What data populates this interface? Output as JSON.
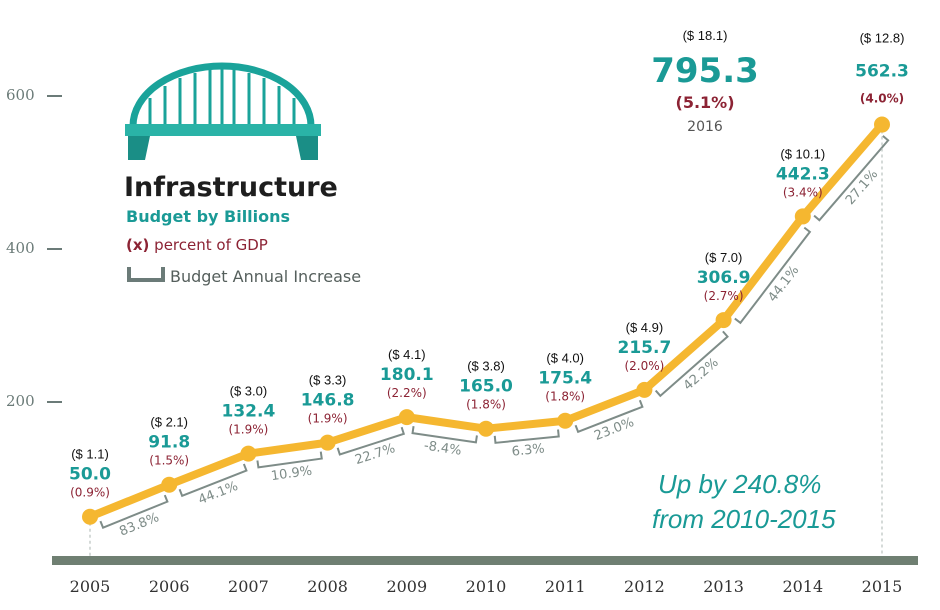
{
  "chart_data": {
    "type": "line",
    "title": "Infrastructure",
    "subtitle": "Budget by Billions",
    "x": [
      "2005",
      "2006",
      "2007",
      "2008",
      "2009",
      "2010",
      "2011",
      "2012",
      "2013",
      "2014",
      "2015"
    ],
    "values": [
      50.0,
      91.8,
      132.4,
      146.8,
      180.1,
      165.0,
      175.4,
      215.7,
      306.9,
      442.3,
      562.3
    ],
    "value_labels": [
      "50.0",
      "91.8",
      "132.4",
      "146.8",
      "180.1",
      "165.0",
      "175.4",
      "215.7",
      "306.9",
      "442.3",
      "562.3"
    ],
    "billion_labels": [
      "($ 1.1)",
      "($ 2.1)",
      "($ 3.0)",
      "($ 3.3)",
      "($ 4.1)",
      "($ 3.8)",
      "($ 4.0)",
      "($ 4.9)",
      "($ 7.0)",
      "($ 10.1)",
      "($ 12.8)"
    ],
    "gdp_labels": [
      "(0.9%)",
      "(1.5%)",
      "(1.9%)",
      "(1.9%)",
      "(2.2%)",
      "(1.8%)",
      "(1.8%)",
      "(2.0%)",
      "(2.7%)",
      "(3.4%)",
      "(4.0%)"
    ],
    "increases": [
      "83.8%",
      "44.1%",
      "10.9%",
      "22.7%",
      "-8.4%",
      "6.3%",
      "23.0%",
      "42.2%",
      "44.1%",
      "27.1%"
    ],
    "y_ticks": [
      "200",
      "400",
      "600"
    ],
    "ylim": [
      0,
      700
    ],
    "grid": false,
    "legend": {
      "gdp_marker": "(x)",
      "gdp_text": "percent of GDP",
      "increase_text": "Budget Annual Increase"
    },
    "callout_2016": {
      "billion": "($ 18.1)",
      "value": "795.3",
      "pct": "(5.1%)",
      "year": "2016"
    },
    "annotation": [
      "Up by 240.8%",
      "from 2010-2015"
    ],
    "colors": {
      "line": "#f5b730",
      "value": "#1a9a96",
      "pct": "#8c2334",
      "bracket": "#7e8c88",
      "axis": "#6b7b78",
      "icon": "#1aa39a"
    }
  }
}
